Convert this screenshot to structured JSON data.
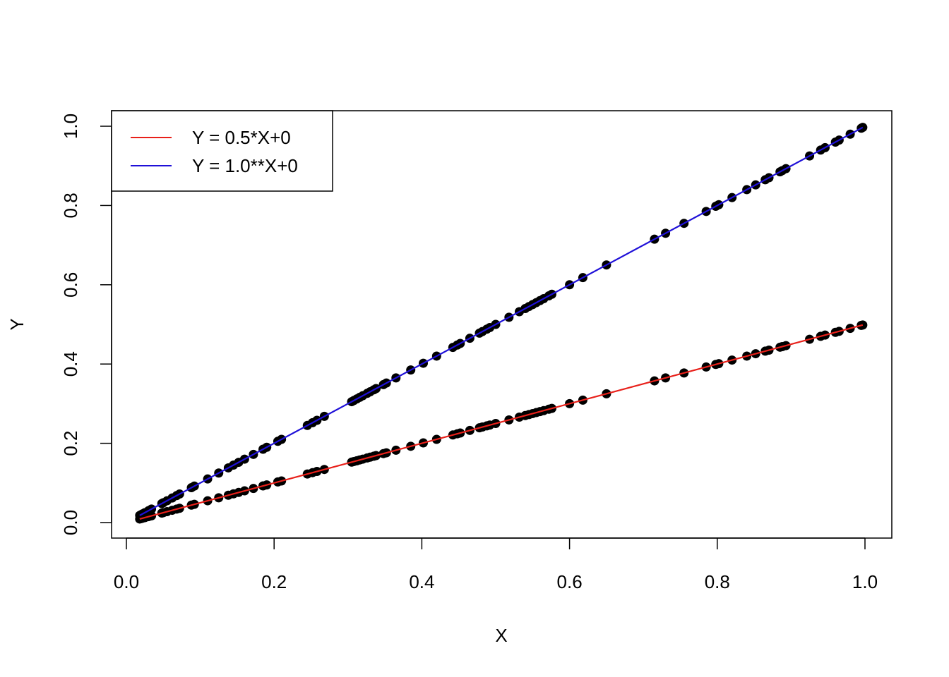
{
  "chart_data": {
    "type": "scatter",
    "title": "",
    "xlabel": "X",
    "ylabel": "Y",
    "xlim": [
      0.0,
      1.0
    ],
    "ylim": [
      0.0,
      1.0
    ],
    "x_ticks": [
      "0.0",
      "0.2",
      "0.4",
      "0.6",
      "0.8",
      "1.0"
    ],
    "y_ticks": [
      "0.0",
      "0.2",
      "0.4",
      "0.6",
      "0.8",
      "1.0"
    ],
    "grid": false,
    "legend_position": "top-left",
    "x": [
      0.018,
      0.02,
      0.022,
      0.025,
      0.03,
      0.034,
      0.048,
      0.05,
      0.055,
      0.062,
      0.068,
      0.072,
      0.088,
      0.092,
      0.11,
      0.125,
      0.138,
      0.145,
      0.152,
      0.16,
      0.172,
      0.185,
      0.19,
      0.205,
      0.21,
      0.245,
      0.252,
      0.258,
      0.268,
      0.305,
      0.308,
      0.312,
      0.316,
      0.32,
      0.326,
      0.33,
      0.335,
      0.338,
      0.348,
      0.352,
      0.365,
      0.385,
      0.402,
      0.42,
      0.442,
      0.448,
      0.452,
      0.465,
      0.478,
      0.482,
      0.488,
      0.492,
      0.5,
      0.518,
      0.532,
      0.54,
      0.545,
      0.55,
      0.555,
      0.56,
      0.565,
      0.572,
      0.576,
      0.6,
      0.618,
      0.65,
      0.715,
      0.73,
      0.755,
      0.785,
      0.798,
      0.802,
      0.82,
      0.84,
      0.852,
      0.865,
      0.87,
      0.885,
      0.888,
      0.893,
      0.925,
      0.94,
      0.946,
      0.96,
      0.965,
      0.98,
      0.995,
      0.997
    ],
    "series": [
      {
        "name": "Y = 0.5*X+0",
        "slope": 0.5,
        "intercept": 0,
        "color": "#e8201a"
      },
      {
        "name": "Y = 1.0**X+0",
        "slope": 1.0,
        "intercept": 0,
        "color": "#1f10d8"
      }
    ],
    "point_color": "#000000"
  }
}
